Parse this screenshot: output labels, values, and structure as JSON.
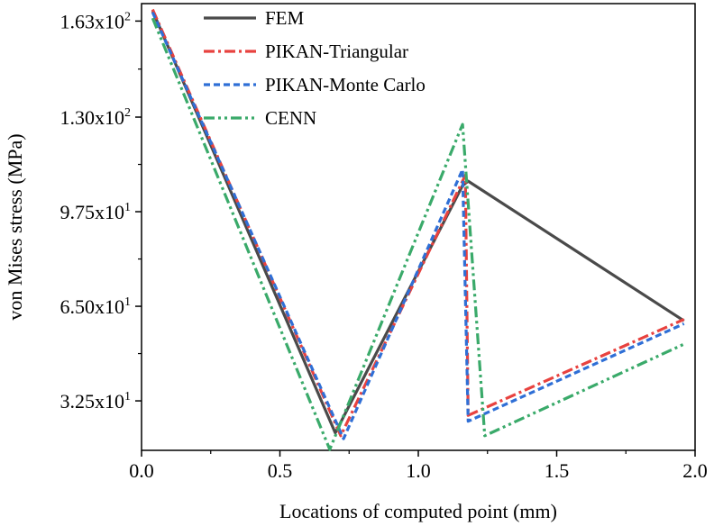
{
  "chart_data": {
    "type": "line",
    "xlabel": "Locations of computed point (mm)",
    "ylabel": "von Mises stress (MPa)",
    "xlim": [
      0.0,
      2.0
    ],
    "ylim": [
      15.5,
      169
    ],
    "grid": false,
    "legend_position": "top-left",
    "x_ticks": [
      {
        "value": 0.0,
        "label": "0.0"
      },
      {
        "value": 0.5,
        "label": "0.5"
      },
      {
        "value": 1.0,
        "label": "1.0"
      },
      {
        "value": 1.5,
        "label": "1.5"
      },
      {
        "value": 2.0,
        "label": "2.0"
      }
    ],
    "y_ticks": [
      {
        "value": 32.5,
        "mantissa": "3.25x10",
        "exp": "1"
      },
      {
        "value": 65.0,
        "mantissa": "6.50x10",
        "exp": "1"
      },
      {
        "value": 97.5,
        "mantissa": "9.75x10",
        "exp": "1"
      },
      {
        "value": 130.0,
        "mantissa": "1.30x10",
        "exp": "2"
      },
      {
        "value": 163.0,
        "mantissa": "1.63x10",
        "exp": "2"
      }
    ],
    "series": [
      {
        "name": "FEM",
        "color": "#4a4a4a",
        "dash": "",
        "x": [
          0.04,
          0.7,
          1.16,
          1.18,
          1.96
        ],
        "y": [
          166.5,
          21.5,
          106.5,
          108.0,
          60.0
        ]
      },
      {
        "name": "PIKAN-Triangular",
        "color": "#e8423f",
        "dash": "12 4 3 4",
        "x": [
          0.04,
          0.72,
          1.17,
          1.18,
          1.96
        ],
        "y": [
          167.0,
          20.5,
          110.0,
          27.5,
          60.5
        ]
      },
      {
        "name": "PIKAN-Monte Carlo",
        "color": "#2f6fd6",
        "dash": "7 4",
        "x": [
          0.04,
          0.73,
          1.16,
          1.18,
          1.96
        ],
        "y": [
          166.0,
          19.5,
          112.0,
          25.5,
          59.0
        ]
      },
      {
        "name": "CENN",
        "color": "#3aaa6a",
        "dash": "12 4 3 4 3 4",
        "x": [
          0.04,
          0.68,
          1.16,
          1.24,
          1.96
        ],
        "y": [
          164.0,
          15.8,
          127.5,
          20.5,
          52.0
        ]
      }
    ]
  }
}
